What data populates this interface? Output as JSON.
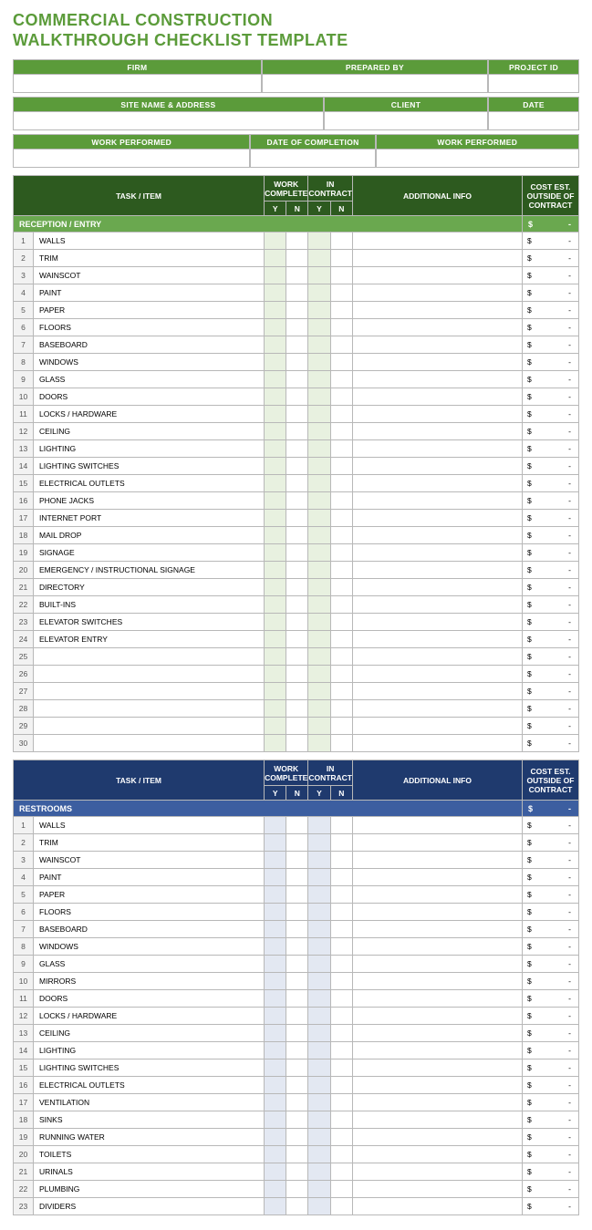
{
  "title_line1": "COMMERCIAL CONSTRUCTION",
  "title_line2": "WALKTHROUGH CHECKLIST TEMPLATE",
  "colors": {
    "brand_green": "#5b9b3a",
    "dark_green": "#2d5a1f",
    "band_green": "#6aa84f",
    "shade_green": "#e8f1e0",
    "dark_blue": "#1f3a6e",
    "band_blue": "#3c5ea0",
    "shade_blue": "#e3e8f2",
    "border": "#b8b8b8",
    "rownum_bg": "#f2f2f2"
  },
  "info": {
    "row1": {
      "firm": "FIRM",
      "prepared_by": "PREPARED BY",
      "project_id": "PROJECT ID"
    },
    "row2": {
      "site": "SITE NAME & ADDRESS",
      "client": "CLIENT",
      "date": "DATE"
    },
    "row3": {
      "work1": "WORK PERFORMED",
      "doc": "DATE OF COMPLETION",
      "work2": "WORK PERFORMED"
    }
  },
  "columns": {
    "task": "TASK / ITEM",
    "work_complete": "WORK COMPLETE",
    "in_contract": "IN CONTRACT",
    "additional": "ADDITIONAL INFO",
    "cost": "COST EST. OUTSIDE OF CONTRACT",
    "y": "Y",
    "n": "N",
    "dollar": "$",
    "dash": "-"
  },
  "sections": [
    {
      "theme": "green",
      "category": "RECEPTION / ENTRY",
      "row_count": 30,
      "items": [
        "WALLS",
        "TRIM",
        "WAINSCOT",
        "PAINT",
        "PAPER",
        "FLOORS",
        "BASEBOARD",
        "WINDOWS",
        "GLASS",
        "DOORS",
        "LOCKS / HARDWARE",
        "CEILING",
        "LIGHTING",
        "LIGHTING SWITCHES",
        "ELECTRICAL OUTLETS",
        "PHONE JACKS",
        "INTERNET PORT",
        "MAIL DROP",
        "SIGNAGE",
        "EMERGENCY / INSTRUCTIONAL SIGNAGE",
        "DIRECTORY",
        "BUILT-INS",
        "ELEVATOR SWITCHES",
        "ELEVATOR ENTRY"
      ]
    },
    {
      "theme": "blue",
      "category": "RESTROOMS",
      "row_count": 23,
      "items": [
        "WALLS",
        "TRIM",
        "WAINSCOT",
        "PAINT",
        "PAPER",
        "FLOORS",
        "BASEBOARD",
        "WINDOWS",
        "GLASS",
        "MIRRORS",
        "DOORS",
        "LOCKS / HARDWARE",
        "CEILING",
        "LIGHTING",
        "LIGHTING SWITCHES",
        "ELECTRICAL OUTLETS",
        "VENTILATION",
        "SINKS",
        "RUNNING WATER",
        "TOILETS",
        "URINALS",
        "PLUMBING",
        "DIVIDERS"
      ]
    }
  ]
}
